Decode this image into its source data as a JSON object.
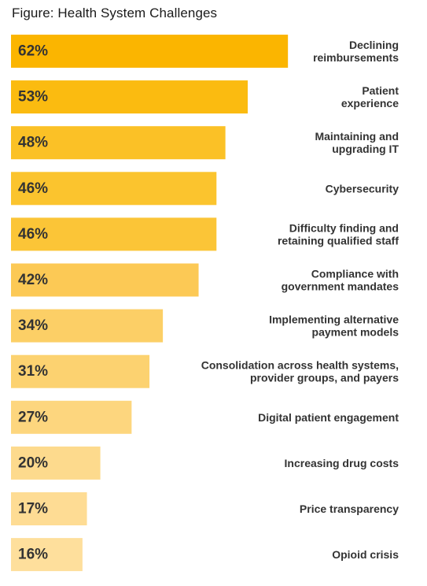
{
  "chart_data": {
    "type": "bar",
    "orientation": "horizontal",
    "title": "Figure: Health System Challenges",
    "xlabel": "",
    "ylabel": "",
    "xlim": [
      0,
      70
    ],
    "grid": false,
    "legend": "none",
    "value_format": "percent",
    "categories": [
      "Declining\nreimbursements",
      "Patient\nexperience",
      "Maintaining and\nupgrading IT",
      "Cybersecurity",
      "Difficulty finding and\nretaining qualified staff",
      "Compliance with\ngovernment mandates",
      "Implementing alternative\npayment models",
      "Consolidation across health systems,\nprovider groups, and payers",
      "Digital patient engagement",
      "Increasing drug costs",
      "Price transparency",
      "Opioid crisis"
    ],
    "values": [
      62,
      53,
      48,
      46,
      46,
      42,
      34,
      31,
      27,
      20,
      17,
      16
    ],
    "value_labels": [
      "62%",
      "53%",
      "48%",
      "46%",
      "46%",
      "42%",
      "34%",
      "31%",
      "27%",
      "20%",
      "17%",
      "16%"
    ],
    "colors": [
      "#fbb500",
      "#fbbb10",
      "#fbc126",
      "#fbc42e",
      "#fbc537",
      "#fcc955",
      "#fccf66",
      "#fcd270",
      "#fdd67e",
      "#fdda8d",
      "#fedc94",
      "#fedf9c"
    ]
  }
}
